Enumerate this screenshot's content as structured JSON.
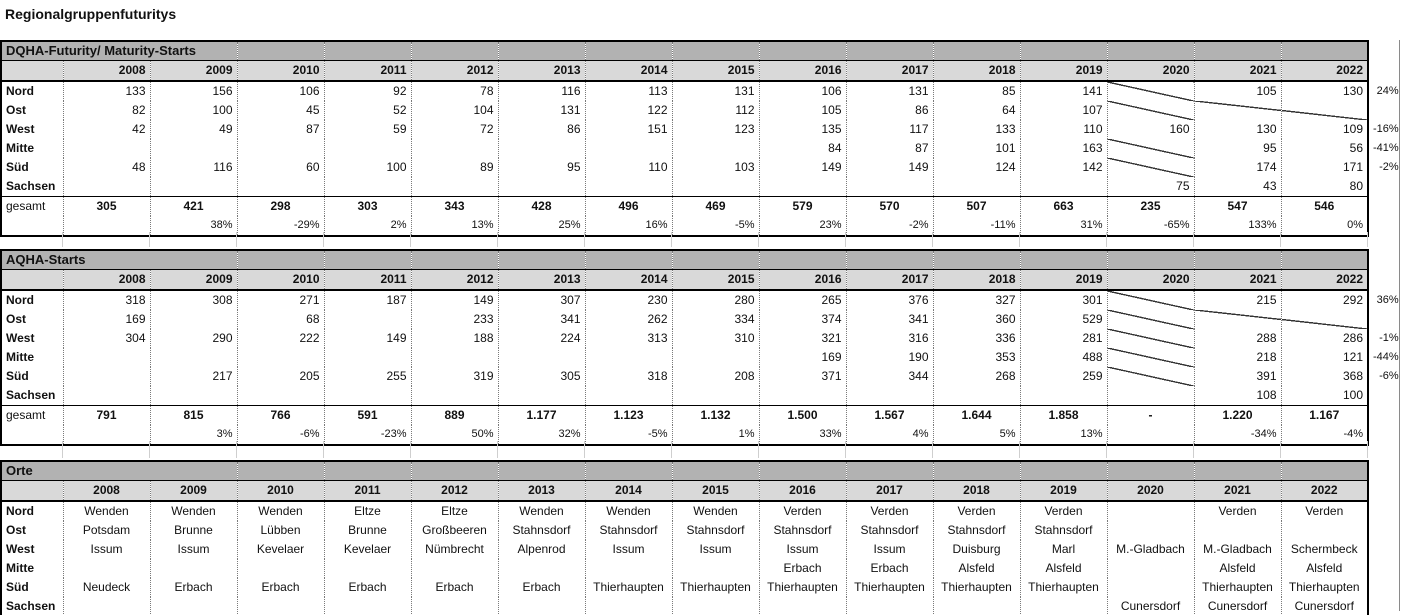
{
  "title": "Regionalgruppenfuturitys",
  "years": [
    "2008",
    "2009",
    "2010",
    "2011",
    "2012",
    "2013",
    "2014",
    "2015",
    "2016",
    "2017",
    "2018",
    "2019",
    "2020",
    "2021",
    "2022"
  ],
  "sections": [
    {
      "id": "dqha",
      "header": "DQHA-Futurity/ Maturity-Starts",
      "align": "right",
      "rows": [
        {
          "label": "Nord",
          "values": [
            "133",
            "156",
            "106",
            "92",
            "78",
            "116",
            "113",
            "131",
            "106",
            "131",
            "85",
            "141",
            "",
            "105",
            "130"
          ],
          "note": "24%",
          "diag": [
            12
          ],
          "diagspan": []
        },
        {
          "label": "Ost",
          "values": [
            "82",
            "100",
            "45",
            "52",
            "104",
            "131",
            "122",
            "112",
            "105",
            "86",
            "64",
            "107",
            "",
            "",
            ""
          ],
          "note": "",
          "diag": [
            12
          ],
          "diagspan": [
            13,
            14
          ]
        },
        {
          "label": "West",
          "values": [
            "42",
            "49",
            "87",
            "59",
            "72",
            "86",
            "151",
            "123",
            "135",
            "117",
            "133",
            "110",
            "160",
            "130",
            "109"
          ],
          "note": "-16%",
          "diag": [],
          "diagspan": []
        },
        {
          "label": "Mitte",
          "values": [
            "",
            "",
            "",
            "",
            "",
            "",
            "",
            "",
            "84",
            "87",
            "101",
            "163",
            "",
            "95",
            "56"
          ],
          "note": "-41%",
          "diag": [
            12
          ],
          "diagspan": []
        },
        {
          "label": "Süd",
          "values": [
            "48",
            "116",
            "60",
            "100",
            "89",
            "95",
            "110",
            "103",
            "149",
            "149",
            "124",
            "142",
            "",
            "174",
            "171"
          ],
          "note": "-2%",
          "diag": [
            12
          ],
          "diagspan": []
        },
        {
          "label": "Sachsen",
          "values": [
            "",
            "",
            "",
            "",
            "",
            "",
            "",
            "",
            "",
            "",
            "",
            "",
            "75",
            "43",
            "80"
          ],
          "note": "",
          "diag": [],
          "diagspan": []
        }
      ],
      "total_label": "gesamt",
      "total": [
        "305",
        "421",
        "298",
        "303",
        "343",
        "428",
        "496",
        "469",
        "579",
        "570",
        "507",
        "663",
        "235",
        "547",
        "546"
      ],
      "pct": [
        "",
        "38%",
        "-29%",
        "2%",
        "13%",
        "25%",
        "16%",
        "-5%",
        "23%",
        "-2%",
        "-11%",
        "31%",
        "-65%",
        "133%",
        "0%"
      ]
    },
    {
      "id": "aqha",
      "header": "AQHA-Starts",
      "align": "right",
      "rows": [
        {
          "label": "Nord",
          "values": [
            "318",
            "308",
            "271",
            "187",
            "149",
            "307",
            "230",
            "280",
            "265",
            "376",
            "327",
            "301",
            "",
            "215",
            "292"
          ],
          "note": "36%",
          "diag": [
            12
          ],
          "diagspan": []
        },
        {
          "label": "Ost",
          "values": [
            "169",
            "",
            "68",
            "",
            "233",
            "341",
            "262",
            "334",
            "374",
            "341",
            "360",
            "529",
            "",
            "",
            ""
          ],
          "note": "",
          "diag": [
            12
          ],
          "diagspan": [
            13,
            14
          ]
        },
        {
          "label": "West",
          "values": [
            "304",
            "290",
            "222",
            "149",
            "188",
            "224",
            "313",
            "310",
            "321",
            "316",
            "336",
            "281",
            "",
            "288",
            "286"
          ],
          "note": "-1%",
          "diag": [
            12
          ],
          "diagspan": []
        },
        {
          "label": "Mitte",
          "values": [
            "",
            "",
            "",
            "",
            "",
            "",
            "",
            "",
            "169",
            "190",
            "353",
            "488",
            "",
            "218",
            "121"
          ],
          "note": "-44%",
          "diag": [
            12
          ],
          "diagspan": []
        },
        {
          "label": "Süd",
          "values": [
            "",
            "217",
            "205",
            "255",
            "319",
            "305",
            "318",
            "208",
            "371",
            "344",
            "268",
            "259",
            "",
            "391",
            "368"
          ],
          "note": "-6%",
          "diag": [
            12
          ],
          "diagspan": []
        },
        {
          "label": "Sachsen",
          "values": [
            "",
            "",
            "",
            "",
            "",
            "",
            "",
            "",
            "",
            "",
            "",
            "",
            "",
            "108",
            "100"
          ],
          "note": "",
          "diag": [],
          "diagspan": []
        }
      ],
      "total_label": "gesamt",
      "total": [
        "791",
        "815",
        "766",
        "591",
        "889",
        "1.177",
        "1.123",
        "1.132",
        "1.500",
        "1.567",
        "1.644",
        "1.858",
        "-",
        "1.220",
        "1.167"
      ],
      "pct": [
        "",
        "3%",
        "-6%",
        "-23%",
        "50%",
        "32%",
        "-5%",
        "1%",
        "33%",
        "4%",
        "5%",
        "13%",
        "",
        "-34%",
        "-4%"
      ]
    },
    {
      "id": "orte",
      "header": "Orte",
      "align": "center",
      "rows": [
        {
          "label": "Nord",
          "values": [
            "Wenden",
            "Wenden",
            "Wenden",
            "Eltze",
            "Eltze",
            "Wenden",
            "Wenden",
            "Wenden",
            "Verden",
            "Verden",
            "Verden",
            "Verden",
            "",
            "Verden",
            "Verden"
          ],
          "note": "",
          "diag": [],
          "diagspan": []
        },
        {
          "label": "Ost",
          "values": [
            "Potsdam",
            "Brunne",
            "Lübben",
            "Brunne",
            "Großbeeren",
            "Stahnsdorf",
            "Stahnsdorf",
            "Stahnsdorf",
            "Stahnsdorf",
            "Stahnsdorf",
            "Stahnsdorf",
            "Stahnsdorf",
            "",
            "",
            ""
          ],
          "note": "",
          "diag": [],
          "diagspan": []
        },
        {
          "label": "West",
          "values": [
            "Issum",
            "Issum",
            "Kevelaer",
            "Kevelaer",
            "Nümbrecht",
            "Alpenrod",
            "Issum",
            "Issum",
            "Issum",
            "Issum",
            "Duisburg",
            "Marl",
            "M.-Gladbach",
            "M.-Gladbach",
            "Schermbeck"
          ],
          "note": "",
          "diag": [],
          "diagspan": []
        },
        {
          "label": "Mitte",
          "values": [
            "",
            "",
            "",
            "",
            "",
            "",
            "",
            "",
            "Erbach",
            "Erbach",
            "Alsfeld",
            "Alsfeld",
            "",
            "Alsfeld",
            "Alsfeld"
          ],
          "note": "",
          "diag": [],
          "diagspan": []
        },
        {
          "label": "Süd",
          "values": [
            "Neudeck",
            "Erbach",
            "Erbach",
            "Erbach",
            "Erbach",
            "Erbach",
            "Thierhaupten",
            "Thierhaupten",
            "Thierhaupten",
            "Thierhaupten",
            "Thierhaupten",
            "Thierhaupten",
            "",
            "Thierhaupten",
            "Thierhaupten"
          ],
          "note": "",
          "diag": [],
          "diagspan": []
        },
        {
          "label": "Sachsen",
          "values": [
            "",
            "",
            "",
            "",
            "",
            "",
            "",
            "",
            "",
            "",
            "",
            "",
            "Cunersdorf",
            "Cunersdorf",
            "Cunersdorf"
          ],
          "note": "",
          "diag": [],
          "diagspan": []
        }
      ]
    }
  ]
}
